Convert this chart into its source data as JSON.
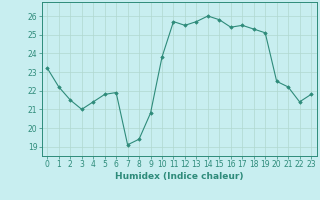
{
  "x": [
    0,
    1,
    2,
    3,
    4,
    5,
    6,
    7,
    8,
    9,
    10,
    11,
    12,
    13,
    14,
    15,
    16,
    17,
    18,
    19,
    20,
    21,
    22,
    23
  ],
  "y": [
    23.2,
    22.2,
    21.5,
    21.0,
    21.4,
    21.8,
    21.9,
    19.1,
    19.4,
    20.8,
    23.8,
    25.7,
    25.5,
    25.7,
    26.0,
    25.8,
    25.4,
    25.5,
    25.3,
    25.1,
    22.5,
    22.2,
    21.4,
    21.8
  ],
  "line_color": "#2e8b7a",
  "marker": "D",
  "marker_size": 1.8,
  "bg_color": "#c8eef0",
  "grid_major_color": "#b0d8d0",
  "grid_minor_color": "#c0e4dc",
  "xlabel": "Humidex (Indice chaleur)",
  "ylim": [
    18.5,
    26.75
  ],
  "yticks": [
    19,
    20,
    21,
    22,
    23,
    24,
    25,
    26
  ],
  "xticks": [
    0,
    1,
    2,
    3,
    4,
    5,
    6,
    7,
    8,
    9,
    10,
    11,
    12,
    13,
    14,
    15,
    16,
    17,
    18,
    19,
    20,
    21,
    22,
    23
  ],
  "label_fontsize": 6.5,
  "tick_fontsize": 5.5
}
